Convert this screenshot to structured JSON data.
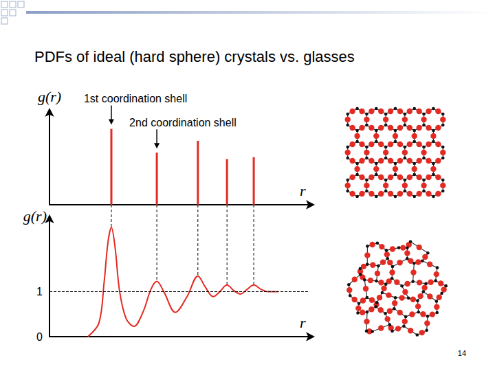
{
  "title": "PDFs of ideal (hard sphere) crystals vs. glasses",
  "page_number": "14",
  "chart_data": [
    {
      "type": "bar",
      "x": [
        2.38,
        4.13,
        5.71,
        6.83,
        7.86
      ],
      "values": [
        0.83,
        0.57,
        0.7,
        0.5,
        0.52
      ],
      "color": "#e32b24",
      "xlim": [
        0,
        10
      ],
      "ylim": [
        0,
        1
      ],
      "x_label": "r",
      "y_label": "g(r)",
      "tick_labels": false,
      "grid": false,
      "annotations": [
        {
          "text": "1st coordination shell",
          "x": 2.38
        },
        {
          "text": "2nd coordination shell",
          "x": 4.13
        }
      ]
    },
    {
      "type": "line",
      "x": [
        1.48,
        1.9,
        2.1,
        2.25,
        2.38,
        2.52,
        2.7,
        2.95,
        3.25,
        3.6,
        3.9,
        4.13,
        4.4,
        4.84,
        5.3,
        5.71,
        6.0,
        6.3,
        6.55,
        6.83,
        7.1,
        7.35,
        7.6,
        7.86,
        8.15,
        8.41,
        8.8
      ],
      "values": [
        0,
        0.3,
        1.2,
        2.1,
        2.43,
        2.0,
        1.0,
        0.4,
        0.23,
        0.55,
        1.05,
        1.23,
        1.0,
        0.54,
        0.9,
        1.35,
        1.1,
        0.89,
        1.0,
        1.15,
        1.02,
        0.95,
        1.05,
        1.15,
        1.05,
        1.0,
        1.0
      ],
      "color": "#e32b24",
      "marker": "none",
      "xlim": [
        0,
        10
      ],
      "ylim": [
        0,
        2.6
      ],
      "yticks": [
        0,
        1
      ],
      "x_label": "r",
      "y_label": "g(r)",
      "tick_labels": "y",
      "grid": false,
      "reference_y": 1
    }
  ]
}
